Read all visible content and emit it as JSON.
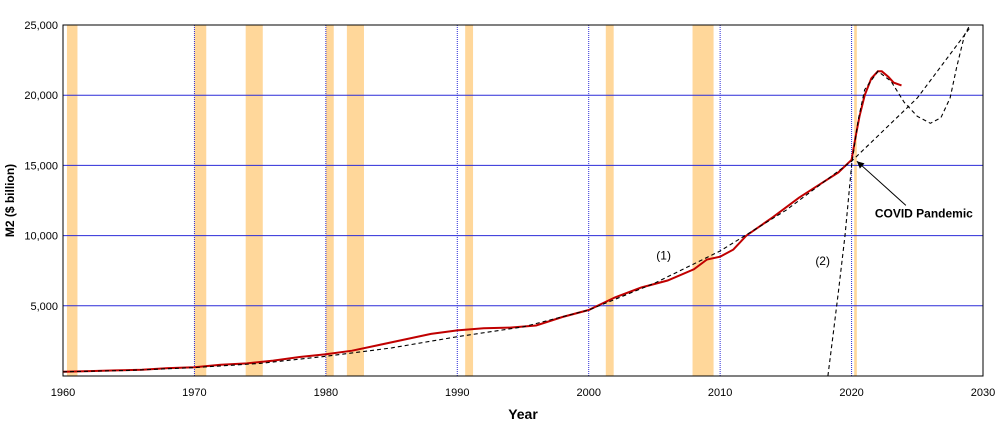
{
  "chart_data": {
    "type": "line",
    "xlabel": "Year",
    "ylabel": "M2 ($ billion)",
    "xlim": [
      1960,
      2030
    ],
    "ylim": [
      0,
      25000
    ],
    "x_ticks": [
      "1960",
      "1970",
      "1980",
      "1990",
      "2000",
      "2010",
      "2020",
      "2030"
    ],
    "y_ticks": [
      "5,000",
      "10,000",
      "15,000",
      "20,000",
      "25,000"
    ],
    "y_tick_values": [
      5000,
      10000,
      15000,
      20000,
      25000
    ],
    "x_tick_values": [
      1960,
      1970,
      1980,
      1990,
      2000,
      2010,
      2020,
      2030
    ],
    "grid": true,
    "recession_bands": [
      [
        1960.3,
        1961.1
      ],
      [
        1970.0,
        1970.9
      ],
      [
        1973.9,
        1975.2
      ],
      [
        1980.0,
        1980.6
      ],
      [
        1981.6,
        1982.9
      ],
      [
        1990.6,
        1991.2
      ],
      [
        2001.3,
        2001.9
      ],
      [
        2007.9,
        2009.5
      ],
      [
        2020.2,
        2020.4
      ]
    ],
    "series": [
      {
        "style": "solid",
        "color": "#c00000",
        "x": [
          1960,
          1962,
          1964,
          1966,
          1968,
          1970,
          1972,
          1974,
          1976,
          1978,
          1980,
          1982,
          1984,
          1986,
          1988,
          1990,
          1992,
          1994,
          1996,
          1998,
          2000,
          2002,
          2004,
          2006,
          2008,
          2009,
          2010,
          2011,
          2012,
          2014,
          2016,
          2018,
          2019,
          2020.0,
          2020.3,
          2020.6,
          2021,
          2021.5,
          2022,
          2022.3,
          2022.8,
          2023.2,
          2023.8
        ],
        "values": [
          300,
          350,
          400,
          450,
          560,
          620,
          800,
          900,
          1100,
          1350,
          1550,
          1800,
          2200,
          2600,
          3000,
          3250,
          3400,
          3450,
          3600,
          4200,
          4700,
          5600,
          6300,
          6800,
          7600,
          8300,
          8500,
          9000,
          10000,
          11300,
          12700,
          13900,
          14500,
          15400,
          17000,
          18500,
          20000,
          21200,
          21700,
          21700,
          21300,
          20900,
          20700
        ]
      },
      {
        "style": "dashed",
        "color": "#000000",
        "x": [
          1960,
          1965,
          1970,
          1975,
          1980,
          1985,
          1990,
          1995,
          2000,
          2005,
          2010,
          2015,
          2020,
          2025,
          2029
        ],
        "values": [
          300,
          400,
          600,
          900,
          1400,
          2000,
          2800,
          3500,
          4700,
          6600,
          8900,
          11800,
          15300,
          19800,
          24800
        ]
      },
      {
        "style": "dashed",
        "color": "#000000",
        "x": [
          2018.2,
          2018.6,
          2019.0,
          2019.5,
          2020.0,
          2020.5,
          2021,
          2022,
          2023,
          2024,
          2025,
          2026,
          2026.8,
          2027.5,
          2028,
          2028.6,
          2029
        ],
        "values": [
          0,
          3000,
          6000,
          10000,
          15000,
          18200,
          20400,
          21700,
          21000,
          19500,
          18500,
          18000,
          18400,
          19800,
          22000,
          24300,
          25000
        ]
      }
    ],
    "annotations": [
      {
        "text": "(1)",
        "x": 2005.7,
        "y": 8300
      },
      {
        "text": "(2)",
        "x": 2017.8,
        "y": 7900
      },
      {
        "text": "COVID Pandemic",
        "x": 2025.5,
        "y": 11300,
        "arrow_to": [
          2020.4,
          15300
        ]
      }
    ]
  }
}
